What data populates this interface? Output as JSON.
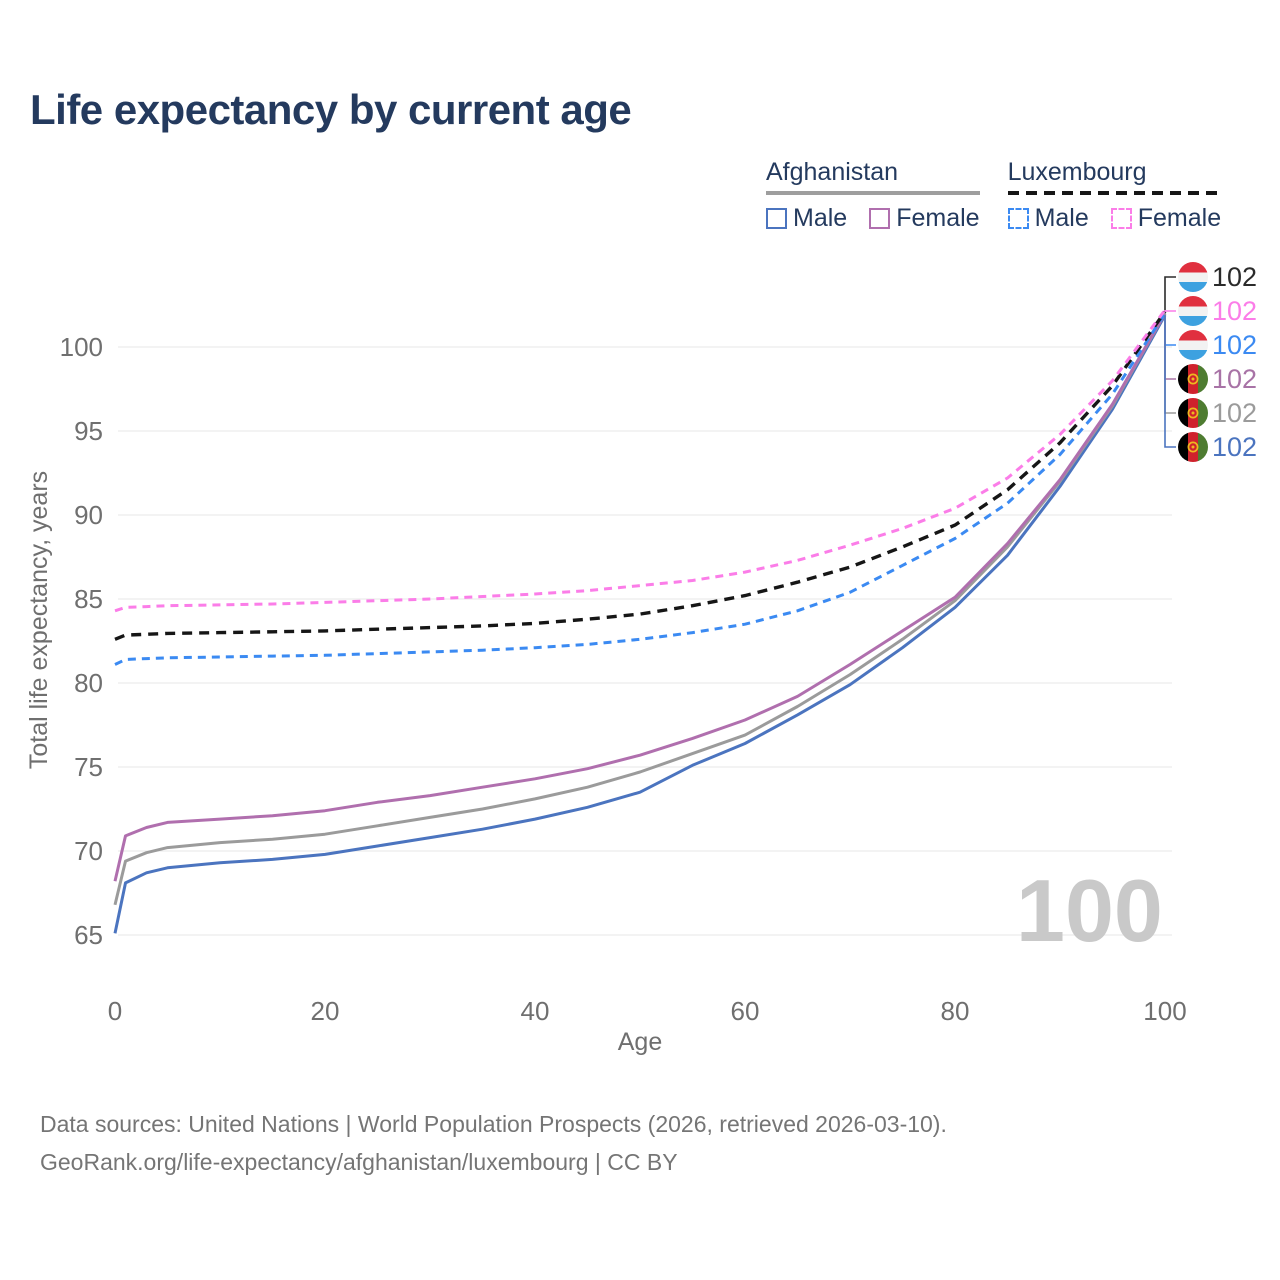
{
  "title": "Life expectancy by current age",
  "legend": {
    "groups": [
      {
        "label": "Afghanistan",
        "underline": "solid",
        "items": [
          {
            "label": "Male",
            "color": "#4b74bf",
            "dash": false
          },
          {
            "label": "Female",
            "color": "#b06fae",
            "dash": false
          }
        ]
      },
      {
        "label": "Luxembourg",
        "underline": "dashed",
        "items": [
          {
            "label": "Male",
            "color": "#3b8af2",
            "dash": true
          },
          {
            "label": "Female",
            "color": "#fb7de8",
            "dash": true
          }
        ]
      }
    ]
  },
  "chart_data": {
    "type": "line",
    "title": "Life expectancy by current age",
    "xlabel": "Age",
    "ylabel": "Total life expectancy, years",
    "x_ticks": [
      0,
      20,
      40,
      60,
      80,
      100
    ],
    "y_ticks": [
      65,
      70,
      75,
      80,
      85,
      90,
      95,
      100
    ],
    "xlim": [
      0,
      100
    ],
    "ylim": [
      63.5,
      103
    ],
    "grid": "horizontal",
    "x": [
      0,
      1,
      3,
      5,
      10,
      15,
      20,
      25,
      30,
      35,
      40,
      45,
      50,
      55,
      60,
      65,
      70,
      75,
      80,
      85,
      90,
      95,
      100
    ],
    "series": [
      {
        "name": "Afghanistan Male",
        "country": "Afghanistan",
        "color": "#4b74bf",
        "dash": "solid",
        "values": [
          65.1,
          68.1,
          68.7,
          69.0,
          69.3,
          69.5,
          69.8,
          70.3,
          70.8,
          71.3,
          71.9,
          72.6,
          73.5,
          75.1,
          76.4,
          78.1,
          79.9,
          82.1,
          84.5,
          87.6,
          91.7,
          96.3,
          101.9
        ]
      },
      {
        "name": "Afghanistan All",
        "country": "Afghanistan",
        "color": "#9b9b9b",
        "dash": "solid",
        "values": [
          66.8,
          69.4,
          69.9,
          70.2,
          70.5,
          70.7,
          71.0,
          71.5,
          72.0,
          72.5,
          73.1,
          73.8,
          74.7,
          75.8,
          76.9,
          78.6,
          80.5,
          82.6,
          84.9,
          88.1,
          92.0,
          96.5,
          102.0
        ]
      },
      {
        "name": "Afghanistan Female",
        "country": "Afghanistan",
        "color": "#b06fae",
        "dash": "solid",
        "values": [
          68.2,
          70.9,
          71.4,
          71.7,
          71.9,
          72.1,
          72.4,
          72.9,
          73.3,
          73.8,
          74.3,
          74.9,
          75.7,
          76.7,
          77.8,
          79.2,
          81.1,
          83.1,
          85.1,
          88.3,
          92.1,
          96.6,
          102.0
        ]
      },
      {
        "name": "Luxembourg Male",
        "country": "Luxembourg",
        "color": "#3b8af2",
        "dash": "dashed",
        "values": [
          81.1,
          81.4,
          81.45,
          81.5,
          81.55,
          81.6,
          81.65,
          81.75,
          81.85,
          81.95,
          82.1,
          82.3,
          82.6,
          83.0,
          83.5,
          84.3,
          85.4,
          87.0,
          88.6,
          90.7,
          93.6,
          97.2,
          102.0
        ]
      },
      {
        "name": "Luxembourg All",
        "country": "Luxembourg",
        "color": "#161616",
        "dash": "dashed",
        "values": [
          82.6,
          82.85,
          82.9,
          82.95,
          83.0,
          83.05,
          83.1,
          83.2,
          83.3,
          83.4,
          83.55,
          83.8,
          84.1,
          84.6,
          85.2,
          86.0,
          86.9,
          88.1,
          89.4,
          91.5,
          94.3,
          97.7,
          102.1
        ]
      },
      {
        "name": "Luxembourg Female",
        "country": "Luxembourg",
        "color": "#fb7de8",
        "dash": "dashed",
        "values": [
          84.3,
          84.5,
          84.55,
          84.6,
          84.65,
          84.7,
          84.8,
          84.9,
          85.0,
          85.15,
          85.3,
          85.5,
          85.8,
          86.1,
          86.6,
          87.3,
          88.2,
          89.2,
          90.4,
          92.2,
          94.8,
          98.0,
          102.2
        ]
      }
    ],
    "watermark": "100"
  },
  "edge_labels": [
    {
      "flag": "luxembourg",
      "value": "102",
      "color": "#2b2b2b",
      "series": "Luxembourg All"
    },
    {
      "flag": "luxembourg",
      "value": "102",
      "color": "#fb7de8",
      "series": "Luxembourg Female"
    },
    {
      "flag": "luxembourg",
      "value": "102",
      "color": "#3b8af2",
      "series": "Luxembourg Male"
    },
    {
      "flag": "afghanistan",
      "value": "102",
      "color": "#a873a6",
      "series": "Afghanistan Female"
    },
    {
      "flag": "afghanistan",
      "value": "102",
      "color": "#9b9b9b",
      "series": "Afghanistan All"
    },
    {
      "flag": "afghanistan",
      "value": "102",
      "color": "#4b74bf",
      "series": "Afghanistan Male"
    }
  ],
  "flag_colors": {
    "luxembourg": {
      "red": "#e0303f",
      "white": "#f2f2f2",
      "blue": "#3da1e0"
    },
    "afghanistan": {
      "black": "#000000",
      "red": "#cf222c",
      "green": "#4e7c31",
      "emblem": "#edb81f"
    }
  },
  "footer": {
    "line1": "Data sources: United Nations | World Population Prospects (2026, retrieved 2026-03-10).",
    "line2": "GeoRank.org/life-expectancy/afghanistan/luxembourg | CC BY"
  },
  "colors": {
    "title": "#243a5e",
    "tick": "#6f6f6f",
    "gridline": "#ececec",
    "watermark": "#c9c9c9",
    "footer": "#757575"
  }
}
